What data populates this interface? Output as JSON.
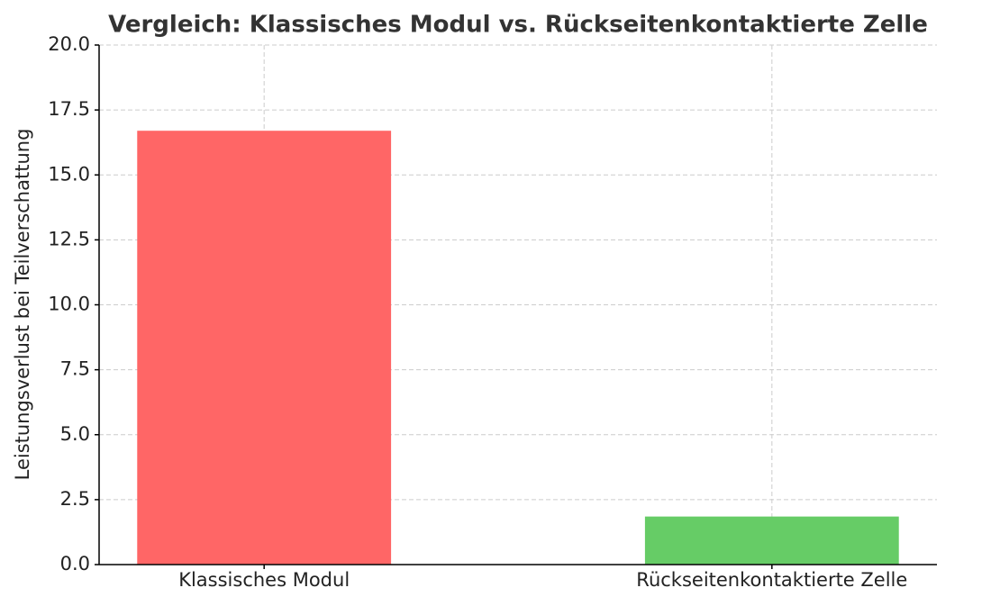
{
  "chart_data": {
    "type": "bar",
    "title": "Vergleich: Klassisches Modul vs. Rückseitenkontaktierte Zelle",
    "y_label": "Leistungsverlust bei Teilverschattung",
    "categories": [
      "Klassisches Modul",
      "Rückseitenkontaktierte Zelle"
    ],
    "values": [
      16.7,
      1.85
    ],
    "colors": [
      "#ff6666",
      "#66cc66"
    ],
    "ylim": [
      0,
      20
    ],
    "yticks": [
      {
        "value": 0,
        "label": "0.0"
      },
      2.5,
      {
        "value": 5,
        "label": "5.0"
      },
      7.5,
      {
        "value": 10,
        "label": "10.0"
      },
      12.5,
      {
        "value": 15,
        "label": "15.0"
      },
      17.5,
      {
        "value": 20,
        "label": "20.0"
      }
    ],
    "grid": true
  }
}
